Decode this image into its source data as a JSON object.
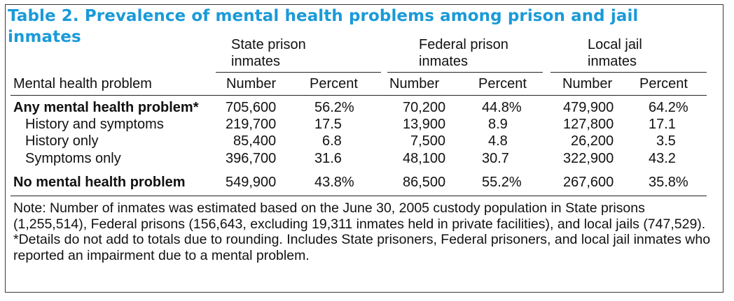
{
  "title": "Table 2. Prevalence of mental health problems among prison and jail inmates",
  "groups": {
    "state": {
      "line1": "State prison",
      "line2": "inmates"
    },
    "federal": {
      "line1": "Federal prison",
      "line2": "inmates"
    },
    "local": {
      "line1": "Local jail",
      "line2": "inmates"
    }
  },
  "columns": {
    "label": "Mental health problem",
    "number": "Number",
    "percent": "Percent"
  },
  "rows": [
    {
      "label": "Any mental health problem*",
      "state_num": "705,600",
      "state_pct": "56.2%",
      "fed_num": "70,200",
      "fed_pct": "44.8%",
      "local_num": "479,900",
      "local_pct": "64.2%"
    },
    {
      "label": "History and symptoms",
      "state_num": "219,700",
      "state_pct": "17.5",
      "fed_num": "13,900",
      "fed_pct": "8.9",
      "local_num": "127,800",
      "local_pct": "17.1"
    },
    {
      "label": "History only",
      "state_num": "85,400",
      "state_pct": "6.8",
      "fed_num": "7,500",
      "fed_pct": "4.8",
      "local_num": "26,200",
      "local_pct": "3.5"
    },
    {
      "label": "Symptoms only",
      "state_num": "396,700",
      "state_pct": "31.6",
      "fed_num": "48,100",
      "fed_pct": "30.7",
      "local_num": "322,900",
      "local_pct": "43.2"
    },
    {
      "label": "No mental health problem",
      "state_num": "549,900",
      "state_pct": "43.8%",
      "fed_num": "86,500",
      "fed_pct": "55.2%",
      "local_num": "267,600",
      "local_pct": "35.8%"
    }
  ],
  "notes": {
    "note1": "Note: Number of inmates was estimated based on the June 30, 2005 custody population in State prisons (1,255,514), Federal prisons (156,643, excluding 19,311 inmates held in private facilities), and local jails (747,529).",
    "note2": "*Details do not add to totals due to rounding. Includes State prisoners, Federal prisoners, and local jail inmates who reported an impairment due to a mental problem."
  },
  "colors": {
    "title": "#1a9ad8",
    "text": "#111111",
    "rules": "#222222"
  }
}
